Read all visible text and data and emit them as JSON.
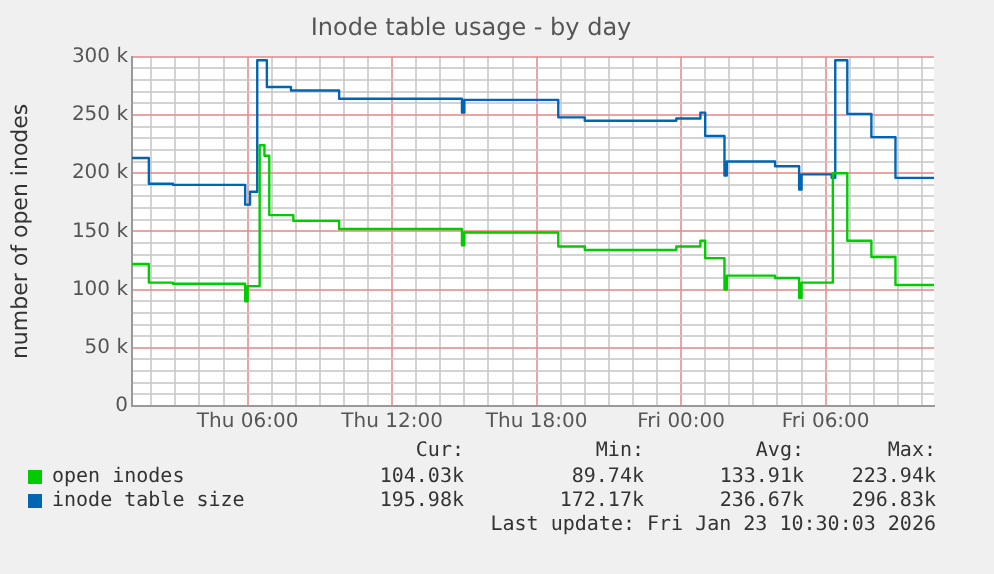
{
  "chart_data": {
    "type": "step",
    "title": "Inode table usage - by day",
    "ylabel": "number of open inodes",
    "xlim": [
      "2026-01-22T01:12",
      "2026-01-23T10:30"
    ],
    "xticks": [
      {
        "value": "2026-01-22T02:00",
        "label": null
      },
      {
        "value": "2026-01-22T03:00",
        "label": null
      },
      {
        "value": "2026-01-22T04:00",
        "label": null
      },
      {
        "value": "2026-01-22T05:00",
        "label": null
      },
      {
        "value": "2026-01-22T06:00",
        "label": "Thu 06:00"
      },
      {
        "value": "2026-01-22T07:00",
        "label": null
      },
      {
        "value": "2026-01-22T08:00",
        "label": null
      },
      {
        "value": "2026-01-22T09:00",
        "label": null
      },
      {
        "value": "2026-01-22T10:00",
        "label": null
      },
      {
        "value": "2026-01-22T11:00",
        "label": null
      },
      {
        "value": "2026-01-22T12:00",
        "label": "Thu 12:00"
      },
      {
        "value": "2026-01-22T13:00",
        "label": null
      },
      {
        "value": "2026-01-22T14:00",
        "label": null
      },
      {
        "value": "2026-01-22T15:00",
        "label": null
      },
      {
        "value": "2026-01-22T16:00",
        "label": null
      },
      {
        "value": "2026-01-22T17:00",
        "label": null
      },
      {
        "value": "2026-01-22T18:00",
        "label": "Thu 18:00"
      },
      {
        "value": "2026-01-22T19:00",
        "label": null
      },
      {
        "value": "2026-01-22T20:00",
        "label": null
      },
      {
        "value": "2026-01-22T21:00",
        "label": null
      },
      {
        "value": "2026-01-22T22:00",
        "label": null
      },
      {
        "value": "2026-01-22T23:00",
        "label": null
      },
      {
        "value": "2026-01-23T00:00",
        "label": "Fri 00:00"
      },
      {
        "value": "2026-01-23T01:00",
        "label": null
      },
      {
        "value": "2026-01-23T02:00",
        "label": null
      },
      {
        "value": "2026-01-23T03:00",
        "label": null
      },
      {
        "value": "2026-01-23T04:00",
        "label": null
      },
      {
        "value": "2026-01-23T05:00",
        "label": null
      },
      {
        "value": "2026-01-23T06:00",
        "label": "Fri 06:00"
      },
      {
        "value": "2026-01-23T07:00",
        "label": null
      },
      {
        "value": "2026-01-23T08:00",
        "label": null
      },
      {
        "value": "2026-01-23T09:00",
        "label": null
      },
      {
        "value": "2026-01-23T10:00",
        "label": null
      }
    ],
    "ylim": [
      0,
      300000
    ],
    "yticks": [
      {
        "value": 0,
        "label": "0"
      },
      {
        "value": 10000,
        "label": null
      },
      {
        "value": 20000,
        "label": null
      },
      {
        "value": 30000,
        "label": null
      },
      {
        "value": 40000,
        "label": null
      },
      {
        "value": 50000,
        "label": "50 k"
      },
      {
        "value": 60000,
        "label": null
      },
      {
        "value": 70000,
        "label": null
      },
      {
        "value": 80000,
        "label": null
      },
      {
        "value": 90000,
        "label": null
      },
      {
        "value": 100000,
        "label": "100 k"
      },
      {
        "value": 110000,
        "label": null
      },
      {
        "value": 120000,
        "label": null
      },
      {
        "value": 130000,
        "label": null
      },
      {
        "value": 140000,
        "label": null
      },
      {
        "value": 150000,
        "label": "150 k"
      },
      {
        "value": 160000,
        "label": null
      },
      {
        "value": 170000,
        "label": null
      },
      {
        "value": 180000,
        "label": null
      },
      {
        "value": 190000,
        "label": null
      },
      {
        "value": 200000,
        "label": "200 k"
      },
      {
        "value": 210000,
        "label": null
      },
      {
        "value": 220000,
        "label": null
      },
      {
        "value": 230000,
        "label": null
      },
      {
        "value": 240000,
        "label": null
      },
      {
        "value": 250000,
        "label": "250 k"
      },
      {
        "value": 260000,
        "label": null
      },
      {
        "value": 270000,
        "label": null
      },
      {
        "value": 280000,
        "label": null
      },
      {
        "value": 290000,
        "label": null
      },
      {
        "value": 300000,
        "label": "300 k"
      }
    ],
    "grid": true,
    "legend": "bottom",
    "marker": "none",
    "line_style": "solid",
    "series": [
      {
        "name": "open inodes",
        "color": "#00cc00",
        "x": [
          "2026-01-22T01:12",
          "2026-01-22T01:54",
          "2026-01-22T02:54",
          "2026-01-22T05:54",
          "2026-01-22T06:00",
          "2026-01-22T06:30",
          "2026-01-22T06:42",
          "2026-01-22T06:54",
          "2026-01-22T07:54",
          "2026-01-22T09:48",
          "2026-01-22T14:54",
          "2026-01-22T15:00",
          "2026-01-22T18:54",
          "2026-01-22T20:00",
          "2026-01-22T23:48",
          "2026-01-23T00:48",
          "2026-01-23T01:00",
          "2026-01-23T01:48",
          "2026-01-23T01:54",
          "2026-01-23T03:54",
          "2026-01-23T04:54",
          "2026-01-23T05:00",
          "2026-01-23T06:18",
          "2026-01-23T06:54",
          "2026-01-23T07:54",
          "2026-01-23T08:54",
          "2026-01-23T10:30"
        ],
        "values": [
          122000,
          106000,
          105000,
          90000,
          103000,
          224000,
          215000,
          164000,
          159000,
          152000,
          138000,
          149000,
          137000,
          134000,
          137000,
          142000,
          127000,
          100000,
          112000,
          110000,
          93000,
          106000,
          200000,
          142000,
          128000,
          104000,
          104000
        ]
      },
      {
        "name": "inode table size",
        "color": "#0066b3",
        "x": [
          "2026-01-22T01:12",
          "2026-01-22T01:54",
          "2026-01-22T02:54",
          "2026-01-22T05:54",
          "2026-01-22T06:06",
          "2026-01-22T06:24",
          "2026-01-22T06:48",
          "2026-01-22T07:48",
          "2026-01-22T09:48",
          "2026-01-22T14:54",
          "2026-01-22T15:00",
          "2026-01-22T18:54",
          "2026-01-22T20:00",
          "2026-01-22T23:48",
          "2026-01-23T00:48",
          "2026-01-23T01:00",
          "2026-01-23T01:48",
          "2026-01-23T01:54",
          "2026-01-23T03:54",
          "2026-01-23T04:54",
          "2026-01-23T05:00",
          "2026-01-23T06:15",
          "2026-01-23T06:24",
          "2026-01-23T06:54",
          "2026-01-23T07:54",
          "2026-01-23T08:54",
          "2026-01-23T10:30"
        ],
        "values": [
          213000,
          191000,
          190000,
          173000,
          184000,
          297000,
          274000,
          271000,
          264000,
          252000,
          263000,
          248000,
          245000,
          247000,
          252000,
          232000,
          198000,
          210000,
          206000,
          186000,
          199000,
          196000,
          297000,
          251000,
          231000,
          196000,
          196000
        ]
      }
    ],
    "annotations": [
      "Cur:",
      "Min:",
      "Avg:",
      "Max:",
      "104.03k",
      "89.74k",
      "133.91k",
      "223.94k",
      "195.98k",
      "172.17k",
      "236.67k",
      "296.83k",
      "Last update: Fri Jan 23 10:30:03 2026"
    ]
  }
}
